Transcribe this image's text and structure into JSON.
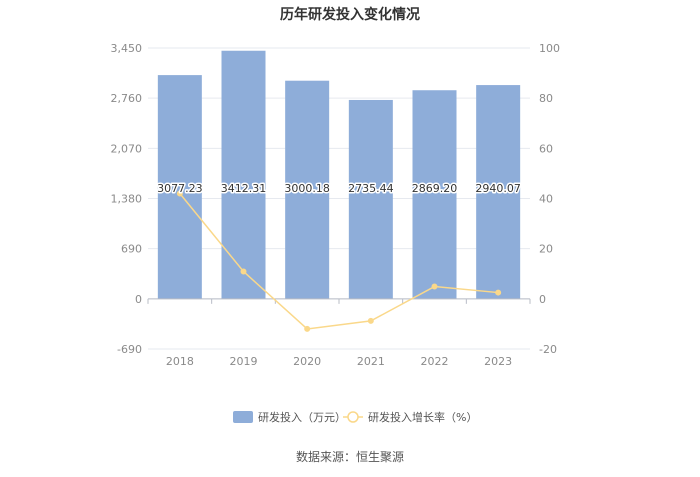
{
  "chart_data": {
    "type": "bar",
    "title": "历年研发投入变化情况",
    "categories": [
      "2018",
      "2019",
      "2020",
      "2021",
      "2022",
      "2023"
    ],
    "series": [
      {
        "name": "研发投入（万元）",
        "type": "bar",
        "axis": "left",
        "values": [
          3077.23,
          3412.31,
          3000.18,
          2735.44,
          2869.2,
          2940.07
        ],
        "labels": [
          "3077.23",
          "3412.31",
          "3000.18",
          "2735.44",
          "2869.20",
          "2940.07"
        ]
      },
      {
        "name": "研发投入增长率（%）",
        "type": "line",
        "axis": "right",
        "values": [
          42.0,
          10.9,
          -12.0,
          -8.8,
          4.9,
          2.5
        ]
      }
    ],
    "y_left": {
      "ylim": [
        -690,
        3450
      ],
      "ticks": [
        -690,
        0,
        690,
        1380,
        2070,
        2760,
        3450
      ],
      "tick_labels": [
        "-690",
        "0",
        "690",
        "1,380",
        "2,070",
        "2,760",
        "3,450"
      ]
    },
    "y_right": {
      "ylim": [
        -20,
        100
      ],
      "ticks": [
        -20,
        0,
        20,
        40,
        60,
        80,
        100
      ],
      "tick_labels": [
        "-20",
        "0",
        "20",
        "40",
        "60",
        "80",
        "100"
      ]
    },
    "grid": true,
    "legend_position": "bottom",
    "colors": {
      "bar": "#8eadd9",
      "line": "#fad88a",
      "axis_text": "#8a8a8a",
      "grid": "#e6e9ef",
      "title": "#333333"
    }
  },
  "footer": {
    "source": "数据来源：恒生聚源"
  }
}
